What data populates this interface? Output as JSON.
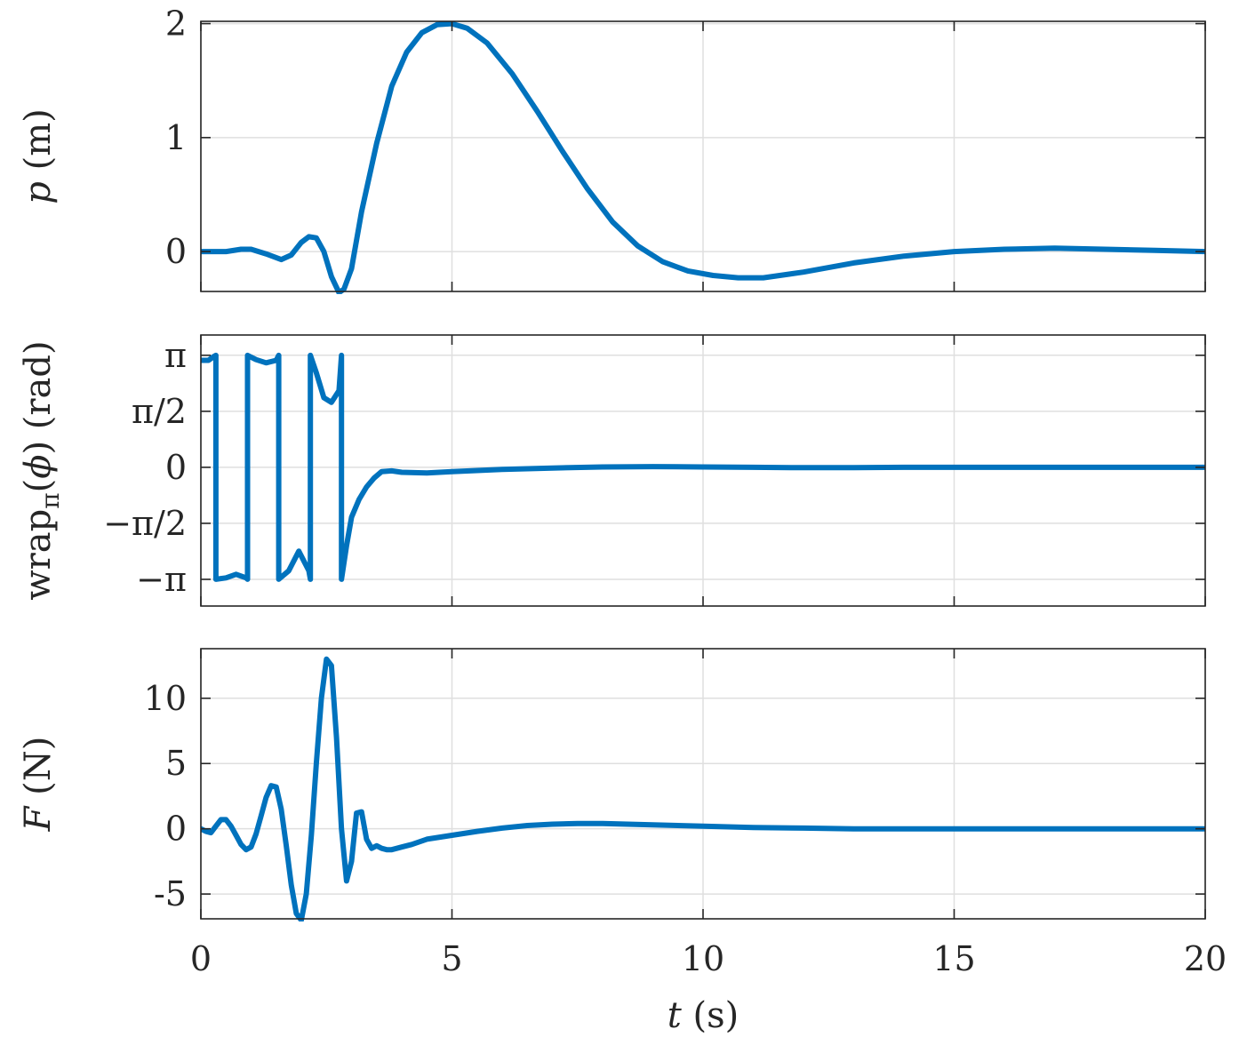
{
  "chart_data": [
    {
      "type": "line",
      "ylabel": {
        "var": "p",
        "unit": " (m)"
      },
      "xlim": [
        0,
        20
      ],
      "ylim": [
        -0.35,
        2.02
      ],
      "xticks": [
        0,
        5,
        10,
        15,
        20
      ],
      "yticks": [
        0,
        1,
        2
      ],
      "yticklabels": [
        "0",
        "1",
        "2"
      ],
      "grid": true,
      "series": [
        {
          "color": "#0072BD",
          "x": [
            0,
            0.5,
            0.8,
            1.0,
            1.3,
            1.6,
            1.8,
            2.0,
            2.15,
            2.3,
            2.45,
            2.6,
            2.75,
            2.85,
            3.0,
            3.2,
            3.5,
            3.8,
            4.1,
            4.4,
            4.7,
            5.0,
            5.3,
            5.7,
            6.2,
            6.7,
            7.2,
            7.7,
            8.2,
            8.7,
            9.2,
            9.7,
            10.2,
            10.7,
            11.2,
            12.0,
            13.0,
            14.0,
            15.0,
            16.0,
            17.0,
            18.0,
            19.0,
            20.0
          ],
          "y": [
            0.0,
            0.0,
            0.02,
            0.02,
            -0.02,
            -0.07,
            -0.03,
            0.08,
            0.13,
            0.12,
            0.0,
            -0.22,
            -0.36,
            -0.33,
            -0.15,
            0.35,
            0.95,
            1.45,
            1.75,
            1.92,
            1.99,
            2.0,
            1.96,
            1.83,
            1.56,
            1.23,
            0.88,
            0.55,
            0.26,
            0.05,
            -0.09,
            -0.17,
            -0.21,
            -0.23,
            -0.23,
            -0.18,
            -0.1,
            -0.04,
            0.0,
            0.02,
            0.03,
            0.02,
            0.01,
            0.0
          ]
        }
      ]
    },
    {
      "type": "line",
      "ylabel": {
        "pre": "wrap",
        "sub": "π",
        "mid": "(",
        "var": "ϕ",
        "unit": ") (rad)"
      },
      "xlim": [
        0,
        20
      ],
      "ylim": [
        -3.89,
        3.71
      ],
      "xticks": [
        0,
        5,
        10,
        15,
        20
      ],
      "yticks": [
        -3.14159,
        -1.5708,
        0,
        1.5708,
        3.14159
      ],
      "yticklabels": [
        "−π",
        "−π/2",
        "0",
        "π/2",
        "π"
      ],
      "grid": true,
      "series": [
        {
          "color": "#0072BD",
          "x": [
            0,
            0.15,
            0.25,
            0.3,
            0.3,
            0.5,
            0.7,
            0.9,
            0.93,
            0.93,
            1.1,
            1.3,
            1.5,
            1.55,
            1.55,
            1.75,
            1.95,
            2.15,
            2.18,
            2.18,
            2.3,
            2.45,
            2.6,
            2.75,
            2.8,
            2.8,
            2.9,
            3.0,
            3.15,
            3.3,
            3.45,
            3.6,
            3.8,
            4.0,
            4.5,
            5.0,
            6.0,
            7.0,
            8.0,
            9.0,
            10.0,
            11.0,
            12.0,
            13.0,
            14.0,
            15.0,
            17.0,
            20.0
          ],
          "y": [
            3.0,
            3.0,
            3.1,
            3.14,
            -3.14,
            -3.1,
            -3.0,
            -3.1,
            -3.14,
            3.14,
            3.02,
            2.93,
            3.0,
            3.14,
            -3.14,
            -2.9,
            -2.35,
            -2.9,
            -3.14,
            3.14,
            2.65,
            1.95,
            1.82,
            2.15,
            3.14,
            -3.14,
            -2.2,
            -1.4,
            -0.9,
            -0.55,
            -0.3,
            -0.12,
            -0.1,
            -0.14,
            -0.16,
            -0.12,
            -0.06,
            -0.02,
            0.01,
            0.02,
            0.01,
            0.0,
            -0.01,
            -0.01,
            0.0,
            0.0,
            0.0,
            0.0
          ]
        }
      ]
    },
    {
      "type": "line",
      "xlabel": {
        "var": "t",
        "unit": " (s)"
      },
      "ylabel": {
        "var": "F",
        "unit": " (N)"
      },
      "xlim": [
        0,
        20
      ],
      "ylim": [
        -6.9,
        13.8
      ],
      "xticks": [
        0,
        5,
        10,
        15,
        20
      ],
      "xticklabels": [
        "0",
        "5",
        "10",
        "15",
        "20"
      ],
      "yticks": [
        -5,
        0,
        5,
        10
      ],
      "yticklabels": [
        "-5",
        "0",
        "5",
        "10"
      ],
      "grid": true,
      "series": [
        {
          "color": "#0072BD",
          "x": [
            0,
            0.1,
            0.2,
            0.3,
            0.4,
            0.5,
            0.6,
            0.7,
            0.8,
            0.9,
            1.0,
            1.1,
            1.2,
            1.3,
            1.4,
            1.5,
            1.6,
            1.7,
            1.8,
            1.9,
            2.0,
            2.1,
            2.2,
            2.3,
            2.4,
            2.5,
            2.6,
            2.7,
            2.8,
            2.9,
            3.0,
            3.1,
            3.2,
            3.3,
            3.4,
            3.5,
            3.6,
            3.7,
            3.8,
            3.9,
            4.0,
            4.2,
            4.5,
            5.0,
            5.5,
            6.0,
            6.5,
            7.0,
            7.5,
            8.0,
            8.5,
            9.0,
            10.0,
            11.0,
            12.0,
            13.0,
            14.0,
            15.0,
            17.0,
            20.0
          ],
          "y": [
            0.0,
            -0.2,
            -0.3,
            0.2,
            0.7,
            0.7,
            0.2,
            -0.5,
            -1.2,
            -1.6,
            -1.4,
            -0.4,
            1.0,
            2.4,
            3.3,
            3.2,
            1.5,
            -1.3,
            -4.3,
            -6.5,
            -7.0,
            -5.0,
            -0.5,
            5.0,
            10.0,
            13.0,
            12.5,
            7.0,
            0.0,
            -4.0,
            -2.5,
            1.2,
            1.3,
            -0.8,
            -1.5,
            -1.3,
            -1.5,
            -1.6,
            -1.6,
            -1.5,
            -1.4,
            -1.2,
            -0.8,
            -0.5,
            -0.2,
            0.05,
            0.25,
            0.35,
            0.4,
            0.4,
            0.35,
            0.3,
            0.2,
            0.1,
            0.05,
            0.0,
            0.0,
            0.0,
            0.0,
            0.0
          ]
        }
      ]
    }
  ]
}
